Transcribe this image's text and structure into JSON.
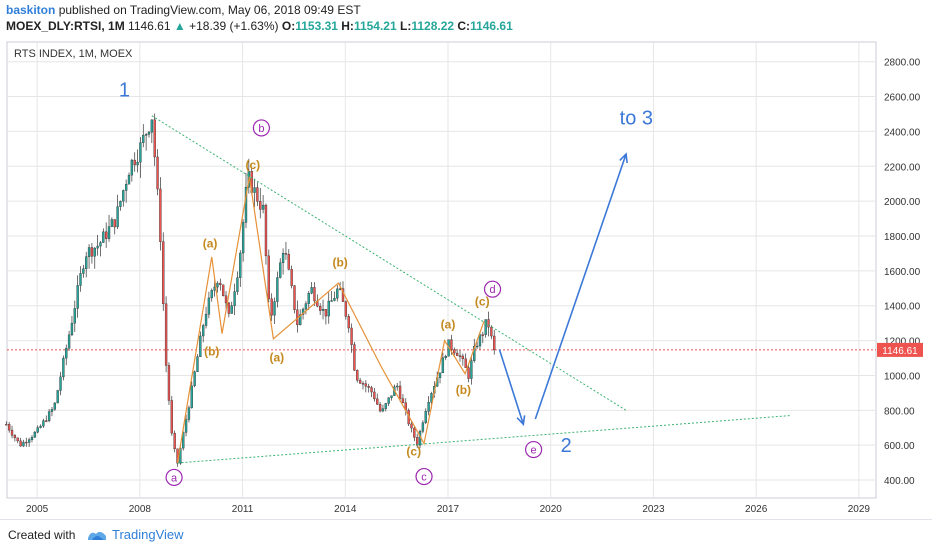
{
  "header": {
    "author": "baskiton",
    "published": "published on TradingView.com, May 06, 2018 09:49 EST",
    "symbol": "MOEX_DLY:RTSI, 1M",
    "last": "1146.61",
    "change": "+18.39 (+1.63%)",
    "o_label": "O:",
    "o_value": "1153.31",
    "h_label": "H:",
    "h_value": "1154.21",
    "l_label": "L:",
    "l_value": "1128.22",
    "c_label": "C:",
    "c_value": "1146.61"
  },
  "footer": {
    "created_with": "Created with",
    "brand": "TradingView"
  },
  "colors": {
    "up": "#26a69a",
    "down": "#ef5350",
    "wave_major": "#3c78d8",
    "wave_minor": "#e69138",
    "circle": "#9c27b0",
    "trendline": "#3cb371",
    "price_line": "#ef5350",
    "grid": "#e6e6e6"
  },
  "chart_data": {
    "type": "candlestick",
    "title": "RTS INDEX, 1M, MOEX",
    "last_price_label": "1146.61",
    "last_price": 1146.61,
    "x_ticks": [
      "2005",
      "2008",
      "2011",
      "2014",
      "2017",
      "2020",
      "2023",
      "2026",
      "2029"
    ],
    "x_tick_values": [
      2005,
      2008,
      2011,
      2014,
      2017,
      2020,
      2023,
      2026,
      2029
    ],
    "y_ticks": [
      "400.00",
      "600.00",
      "800.00",
      "1000.00",
      "1200.00",
      "1400.00",
      "1600.00",
      "1800.00",
      "2000.00",
      "2200.00",
      "2400.00",
      "2600.00",
      "2800.00"
    ],
    "y_tick_values": [
      400,
      600,
      800,
      1000,
      1200,
      1400,
      1600,
      1800,
      2000,
      2200,
      2400,
      2600,
      2800
    ],
    "x_range": [
      2004.12,
      2029.5
    ],
    "y_range": [
      297,
      2913
    ],
    "price_path": [
      [
        2004.1,
        720
      ],
      [
        2004.5,
        600
      ],
      [
        2005.0,
        680
      ],
      [
        2005.5,
        820
      ],
      [
        2006.0,
        1300
      ],
      [
        2006.4,
        1700
      ],
      [
        2006.8,
        1750
      ],
      [
        2007.3,
        1900
      ],
      [
        2007.7,
        2200
      ],
      [
        2008.0,
        2300
      ],
      [
        2008.35,
        2490
      ],
      [
        2008.6,
        1800
      ],
      [
        2008.75,
        1100
      ],
      [
        2008.95,
        620
      ],
      [
        2009.1,
        498
      ],
      [
        2009.5,
        900
      ],
      [
        2009.9,
        1350
      ],
      [
        2010.3,
        1580
      ],
      [
        2010.6,
        1330
      ],
      [
        2010.9,
        1650
      ],
      [
        2011.15,
        2140
      ],
      [
        2011.6,
        1950
      ],
      [
        2011.8,
        1300
      ],
      [
        2012.2,
        1750
      ],
      [
        2012.6,
        1300
      ],
      [
        2013.0,
        1500
      ],
      [
        2013.4,
        1350
      ],
      [
        2013.8,
        1500
      ],
      [
        2014.1,
        1300
      ],
      [
        2014.3,
        1000
      ],
      [
        2014.8,
        900
      ],
      [
        2015.05,
        780
      ],
      [
        2015.5,
        950
      ],
      [
        2015.9,
        700
      ],
      [
        2016.1,
        610
      ],
      [
        2016.4,
        850
      ],
      [
        2016.8,
        1050
      ],
      [
        2017.0,
        1180
      ],
      [
        2017.3,
        1130
      ],
      [
        2017.6,
        1000
      ],
      [
        2017.8,
        1170
      ],
      [
        2018.0,
        1240
      ],
      [
        2018.15,
        1320
      ],
      [
        2018.3,
        1180
      ],
      [
        2018.38,
        1146.61
      ]
    ],
    "annotations": {
      "major_wave_labels": [
        {
          "text": "1",
          "x": 2007.55,
          "y": 2600
        },
        {
          "text": "2",
          "x": 2020.45,
          "y": 560
        },
        {
          "text": "to 3",
          "x": 2022.5,
          "y": 2440
        }
      ],
      "circled_labels": [
        {
          "text": "a",
          "x": 2009.0,
          "y": 415
        },
        {
          "text": "b",
          "x": 2011.55,
          "y": 2420
        },
        {
          "text": "c",
          "x": 2016.3,
          "y": 420
        },
        {
          "text": "d",
          "x": 2018.3,
          "y": 1495
        },
        {
          "text": "e",
          "x": 2019.5,
          "y": 575
        }
      ],
      "minor_wave_labels": [
        {
          "text": "(c)",
          "x": 2011.3,
          "y": 2185
        },
        {
          "text": "(a)",
          "x": 2010.05,
          "y": 1735
        },
        {
          "text": "(b)",
          "x": 2010.1,
          "y": 1115
        },
        {
          "text": "(a)",
          "x": 2012.0,
          "y": 1080
        },
        {
          "text": "(b)",
          "x": 2013.85,
          "y": 1625
        },
        {
          "text": "(a)",
          "x": 2017.0,
          "y": 1270
        },
        {
          "text": "(b)",
          "x": 2017.45,
          "y": 895
        },
        {
          "text": "(c)",
          "x": 2016.0,
          "y": 540
        },
        {
          "text": "(c)",
          "x": 2018.0,
          "y": 1400
        }
      ],
      "minor_wave_paths": [
        [
          [
            2009.1,
            498
          ],
          [
            2010.1,
            1680
          ],
          [
            2010.4,
            1240
          ],
          [
            2011.2,
            2140
          ],
          [
            2011.9,
            1210
          ],
          [
            2013.8,
            1530
          ],
          [
            2015.05,
            1050
          ],
          [
            2016.3,
            610
          ],
          [
            2016.9,
            1200
          ],
          [
            2017.5,
            1010
          ],
          [
            2018.05,
            1310
          ]
        ]
      ],
      "trendlines": [
        [
          [
            2008.35,
            2490
          ],
          [
            2022.2,
            800
          ]
        ],
        [
          [
            2009.1,
            498
          ],
          [
            2027.0,
            770
          ]
        ]
      ],
      "arrows": [
        [
          [
            2018.5,
            1150
          ],
          [
            2019.2,
            720
          ]
        ],
        [
          [
            2019.55,
            750
          ],
          [
            2022.2,
            2270
          ]
        ]
      ]
    }
  }
}
